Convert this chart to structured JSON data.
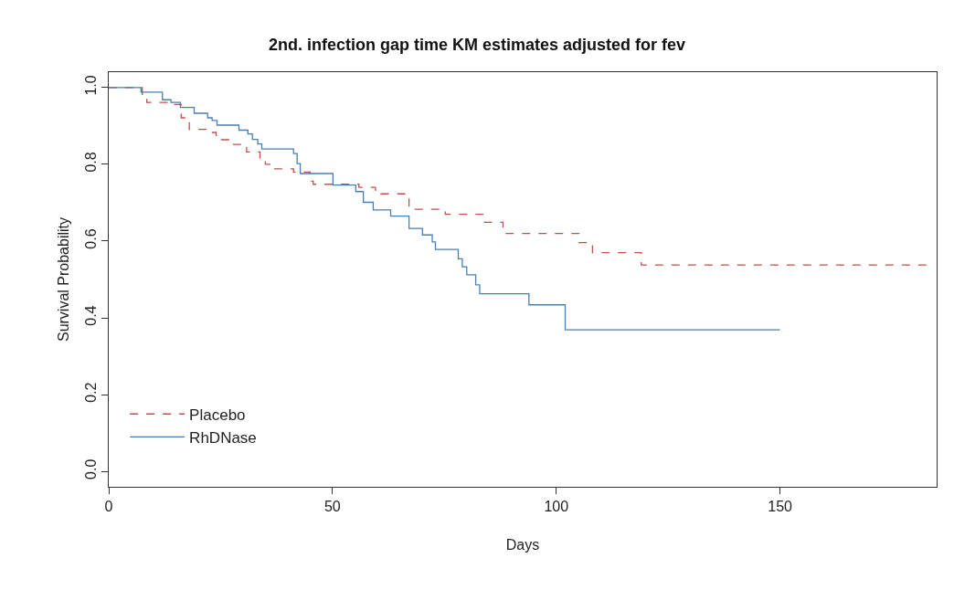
{
  "chart_data": {
    "type": "step",
    "title": "2nd. infection gap time KM estimates adjusted for fev",
    "xlabel": "Days",
    "ylabel": "Survival Probability",
    "xlim": [
      0,
      185
    ],
    "ylim": [
      -0.04,
      1.04
    ],
    "xticks": [
      0,
      50,
      100,
      150
    ],
    "yticks": [
      {
        "value": 0,
        "label": "0.0"
      },
      {
        "value": 0.2,
        "label": "0.2"
      },
      {
        "value": 0.4,
        "label": "0.4"
      },
      {
        "value": 0.6,
        "label": "0.6"
      },
      {
        "value": 0.8,
        "label": "0.8"
      },
      {
        "value": 1,
        "label": "1.0"
      }
    ],
    "legend": "bottom left",
    "marker": "none",
    "series": [
      {
        "name": "Placebo",
        "color": "#c0504d",
        "line_style": "dashed",
        "x": [
          0,
          7.5,
          8.5,
          13.8,
          16.2,
          18,
          22.3,
          24,
          24.6,
          27.7,
          29.7,
          30.8,
          33.8,
          35,
          36,
          41.3,
          45,
          45.7,
          55.9,
          59.6,
          67.1,
          75.2,
          84,
          88.1,
          105.1,
          108.1,
          119,
          183.3
        ],
        "values": [
          1,
          0.98,
          0.961,
          0.956,
          0.921,
          0.891,
          0.883,
          0.875,
          0.864,
          0.852,
          0.844,
          0.832,
          0.816,
          0.8,
          0.788,
          0.78,
          0.756,
          0.748,
          0.74,
          0.723,
          0.683,
          0.67,
          0.649,
          0.62,
          0.596,
          0.57,
          0.538,
          0.538
        ]
      },
      {
        "name": "RhDNase",
        "color": "#4a7fb0",
        "line_style": "solid",
        "x": [
          0,
          7.2,
          12,
          13.9,
          16,
          19.1,
          22.1,
          23.1,
          24.2,
          29.1,
          31.1,
          32.1,
          33.3,
          34.2,
          41.3,
          42.1,
          42.8,
          50.1,
          55.2,
          56.9,
          59.1,
          63,
          67.1,
          70.1,
          72.3,
          73,
          78.1,
          79,
          80,
          82,
          82.9,
          93.9,
          102,
          150
        ],
        "values": [
          1,
          0.988,
          0.968,
          0.961,
          0.948,
          0.933,
          0.921,
          0.914,
          0.902,
          0.889,
          0.879,
          0.865,
          0.853,
          0.84,
          0.828,
          0.802,
          0.776,
          0.746,
          0.729,
          0.701,
          0.681,
          0.665,
          0.633,
          0.616,
          0.598,
          0.578,
          0.554,
          0.533,
          0.512,
          0.486,
          0.463,
          0.434,
          0.369,
          0.369
        ]
      }
    ]
  }
}
